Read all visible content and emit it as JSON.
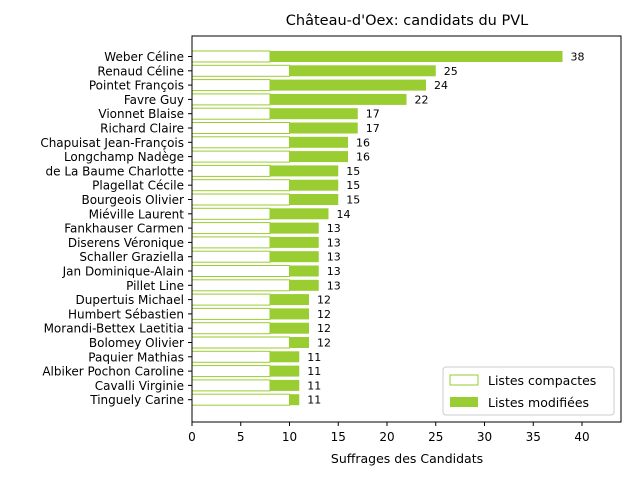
{
  "chart_data": {
    "type": "bar",
    "orientation": "horizontal",
    "title": "Château-d'Oex: candidats du PVL",
    "xlabel": "Suffrages des Candidats",
    "ylabel": "",
    "xlim": [
      0,
      44
    ],
    "xticks": [
      0,
      5,
      10,
      15,
      20,
      25,
      30,
      35,
      40
    ],
    "legend_position": "lower-right",
    "colors": {
      "compact_edge": "#9ACD32",
      "compact_fill": "#ffffff",
      "modified_fill": "#9ACD32"
    },
    "categories": [
      "Weber Céline",
      "Renaud Céline",
      "Pointet François",
      "Favre Guy",
      "Vionnet Blaise",
      "Richard Claire",
      "Chapuisat Jean-François",
      "Longchamp Nadège",
      "de La Baume Charlotte",
      "Plagellat Cécile",
      "Bourgeois Olivier",
      "Miéville Laurent",
      "Fankhauser Carmen",
      "Diserens Véronique",
      "Schaller Graziella",
      "Jan Dominique-Alain",
      "Pillet Line",
      "Dupertuis Michael",
      "Humbert Sébastien",
      "Morandi-Bettex Laetitia",
      "Bolomey Olivier",
      "Paquier Mathias",
      "Albiker Pochon Caroline",
      "Cavalli Virginie",
      "Tinguely Carine"
    ],
    "series": [
      {
        "name": "Listes compactes",
        "values": [
          8,
          10,
          8,
          8,
          8,
          10,
          10,
          10,
          8,
          10,
          10,
          8,
          8,
          8,
          8,
          10,
          10,
          8,
          8,
          8,
          10,
          8,
          8,
          8,
          10
        ]
      },
      {
        "name": "Listes modifiées",
        "values": [
          30,
          15,
          16,
          14,
          9,
          7,
          6,
          6,
          7,
          5,
          5,
          6,
          5,
          5,
          5,
          3,
          3,
          4,
          4,
          4,
          2,
          3,
          3,
          3,
          1
        ]
      }
    ],
    "totals": [
      38,
      25,
      24,
      22,
      17,
      17,
      16,
      16,
      15,
      15,
      15,
      14,
      13,
      13,
      13,
      13,
      13,
      12,
      12,
      12,
      12,
      11,
      11,
      11,
      11
    ]
  }
}
